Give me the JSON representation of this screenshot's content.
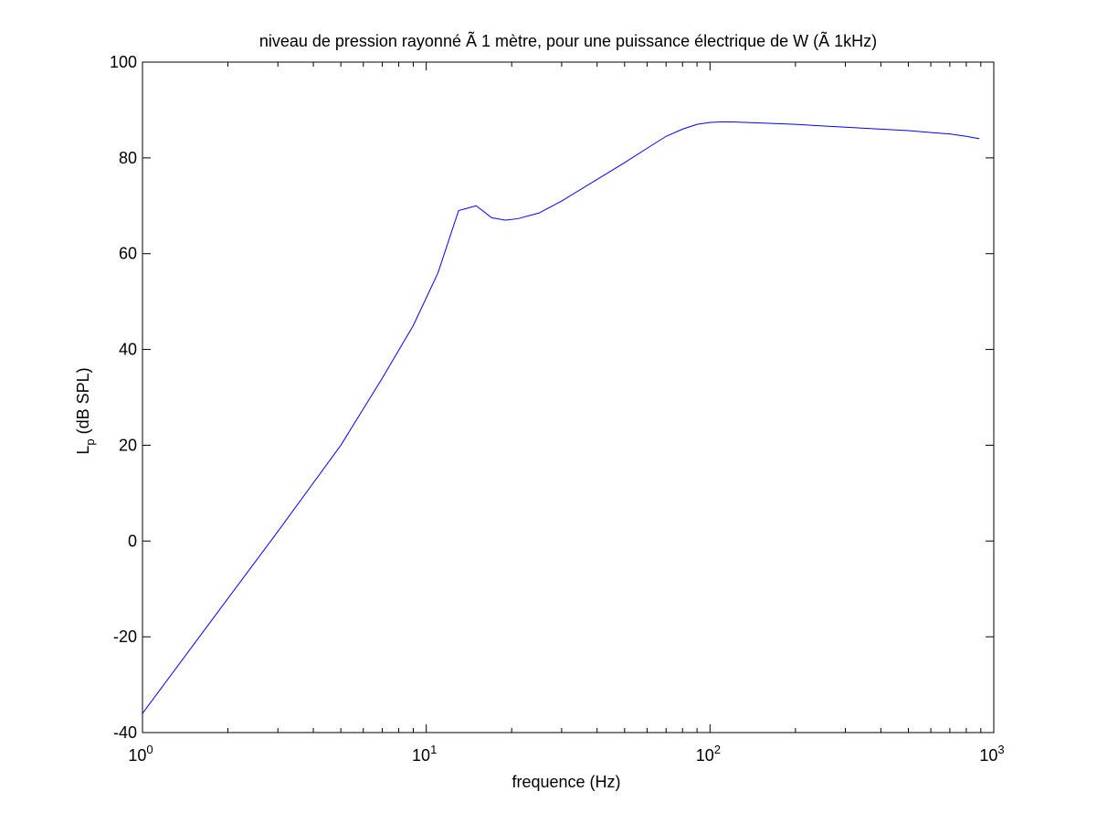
{
  "chart_data": {
    "type": "line",
    "title": "niveau de pression rayonné Ã 1 mètre, pour une puissance électrique de W (Ã  1kHz)",
    "xlabel": "frequence (Hz)",
    "ylabel_main": "L",
    "ylabel_sub": "p",
    "ylabel_rest": " (dB SPL)",
    "x_scale": "log",
    "xlim": [
      1,
      1000
    ],
    "ylim": [
      -40,
      100
    ],
    "x_ticks": [
      {
        "value": 1,
        "base": "10",
        "exp": "0"
      },
      {
        "value": 10,
        "base": "10",
        "exp": "1"
      },
      {
        "value": 100,
        "base": "10",
        "exp": "2"
      },
      {
        "value": 1000,
        "base": "10",
        "exp": "3"
      }
    ],
    "y_ticks": [
      {
        "value": -40,
        "label": "-40"
      },
      {
        "value": -20,
        "label": "-20"
      },
      {
        "value": 0,
        "label": "0"
      },
      {
        "value": 20,
        "label": "20"
      },
      {
        "value": 40,
        "label": "40"
      },
      {
        "value": 60,
        "label": "60"
      },
      {
        "value": 80,
        "label": "80"
      },
      {
        "value": 100,
        "label": "100"
      }
    ],
    "grid": false,
    "series": [
      {
        "color": "#0000ff",
        "x": [
          1,
          2,
          3,
          5,
          7,
          9,
          11,
          13,
          15,
          17,
          19,
          21,
          25,
          30,
          40,
          50,
          60,
          70,
          80,
          90,
          100,
          110,
          120,
          150,
          200,
          300,
          400,
          500,
          600,
          700,
          800,
          890
        ],
        "y": [
          -36,
          -12,
          2,
          20,
          34,
          45,
          56,
          69,
          70,
          67.5,
          67,
          67.3,
          68.5,
          71,
          75.5,
          79,
          82,
          84.5,
          86,
          87,
          87.4,
          87.5,
          87.5,
          87.3,
          87,
          86.4,
          86,
          85.7,
          85.3,
          85,
          84.5,
          84
        ]
      }
    ]
  }
}
